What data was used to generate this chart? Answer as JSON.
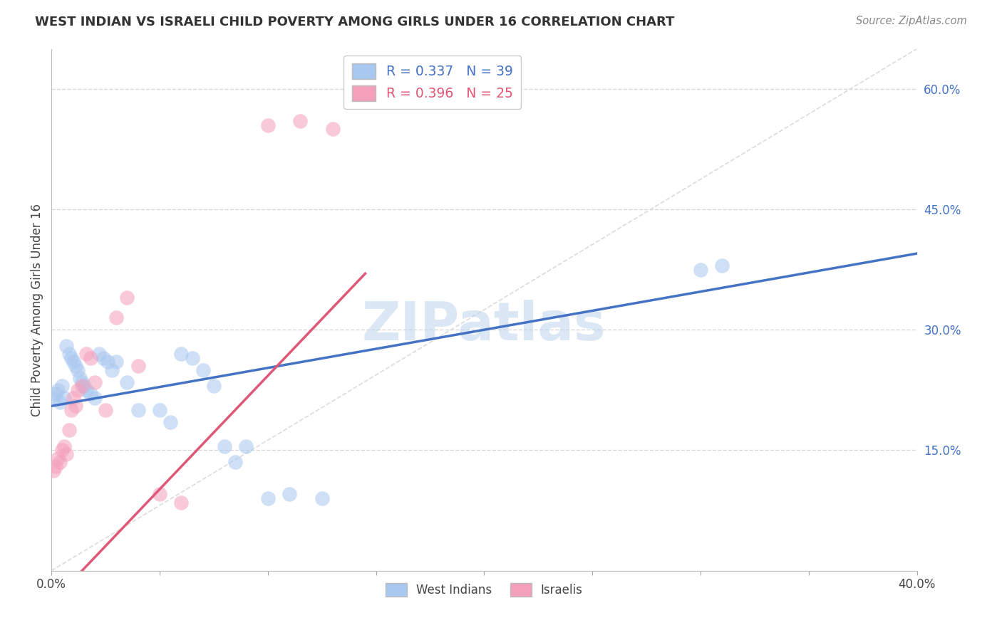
{
  "title": "WEST INDIAN VS ISRAELI CHILD POVERTY AMONG GIRLS UNDER 16 CORRELATION CHART",
  "source": "Source: ZipAtlas.com",
  "ylabel": "Child Poverty Among Girls Under 16",
  "right_yticks": [
    "60.0%",
    "45.0%",
    "30.0%",
    "15.0%"
  ],
  "right_ytick_vals": [
    0.6,
    0.45,
    0.3,
    0.15
  ],
  "watermark": "ZIPatlas",
  "legend_label1": "R = 0.337   N = 39",
  "legend_label2": "R = 0.396   N = 25",
  "legend_group1": "West Indians",
  "legend_group2": "Israelis",
  "color1": "#A8C8F0",
  "color2": "#F4A0BB",
  "line_color1": "#4472C4",
  "line_color2": "#E05878",
  "diag_color": "#D8D8D8",
  "west_indians_x": [
    0.001,
    0.002,
    0.003,
    0.004,
    0.005,
    0.006,
    0.007,
    0.008,
    0.009,
    0.01,
    0.011,
    0.012,
    0.013,
    0.014,
    0.015,
    0.016,
    0.018,
    0.02,
    0.022,
    0.024,
    0.026,
    0.028,
    0.03,
    0.035,
    0.04,
    0.05,
    0.055,
    0.06,
    0.065,
    0.07,
    0.075,
    0.08,
    0.085,
    0.09,
    0.1,
    0.11,
    0.125,
    0.3,
    0.31
  ],
  "west_indians_y": [
    0.215,
    0.22,
    0.225,
    0.21,
    0.23,
    0.215,
    0.28,
    0.27,
    0.265,
    0.26,
    0.255,
    0.25,
    0.24,
    0.235,
    0.23,
    0.225,
    0.22,
    0.215,
    0.27,
    0.265,
    0.26,
    0.25,
    0.26,
    0.235,
    0.2,
    0.2,
    0.185,
    0.27,
    0.265,
    0.25,
    0.23,
    0.155,
    0.135,
    0.155,
    0.09,
    0.095,
    0.09,
    0.375,
    0.38
  ],
  "israelis_x": [
    0.001,
    0.002,
    0.003,
    0.004,
    0.005,
    0.006,
    0.007,
    0.008,
    0.009,
    0.01,
    0.011,
    0.012,
    0.014,
    0.016,
    0.018,
    0.02,
    0.025,
    0.03,
    0.035,
    0.04,
    0.05,
    0.06,
    0.1,
    0.115,
    0.13
  ],
  "israelis_y": [
    0.125,
    0.13,
    0.14,
    0.135,
    0.15,
    0.155,
    0.145,
    0.175,
    0.2,
    0.215,
    0.205,
    0.225,
    0.23,
    0.27,
    0.265,
    0.235,
    0.2,
    0.315,
    0.34,
    0.255,
    0.095,
    0.085,
    0.555,
    0.56,
    0.55
  ],
  "blue_line": [
    0.0,
    0.4,
    0.205,
    0.395
  ],
  "pink_line": [
    0.0,
    0.145,
    -0.04,
    0.37
  ],
  "xlim": [
    0.0,
    0.4
  ],
  "ylim": [
    -0.04,
    0.65
  ],
  "plot_ylim": [
    0.0,
    0.65
  ],
  "background_color": "#FFFFFF",
  "grid_color": "#D8D8D8"
}
